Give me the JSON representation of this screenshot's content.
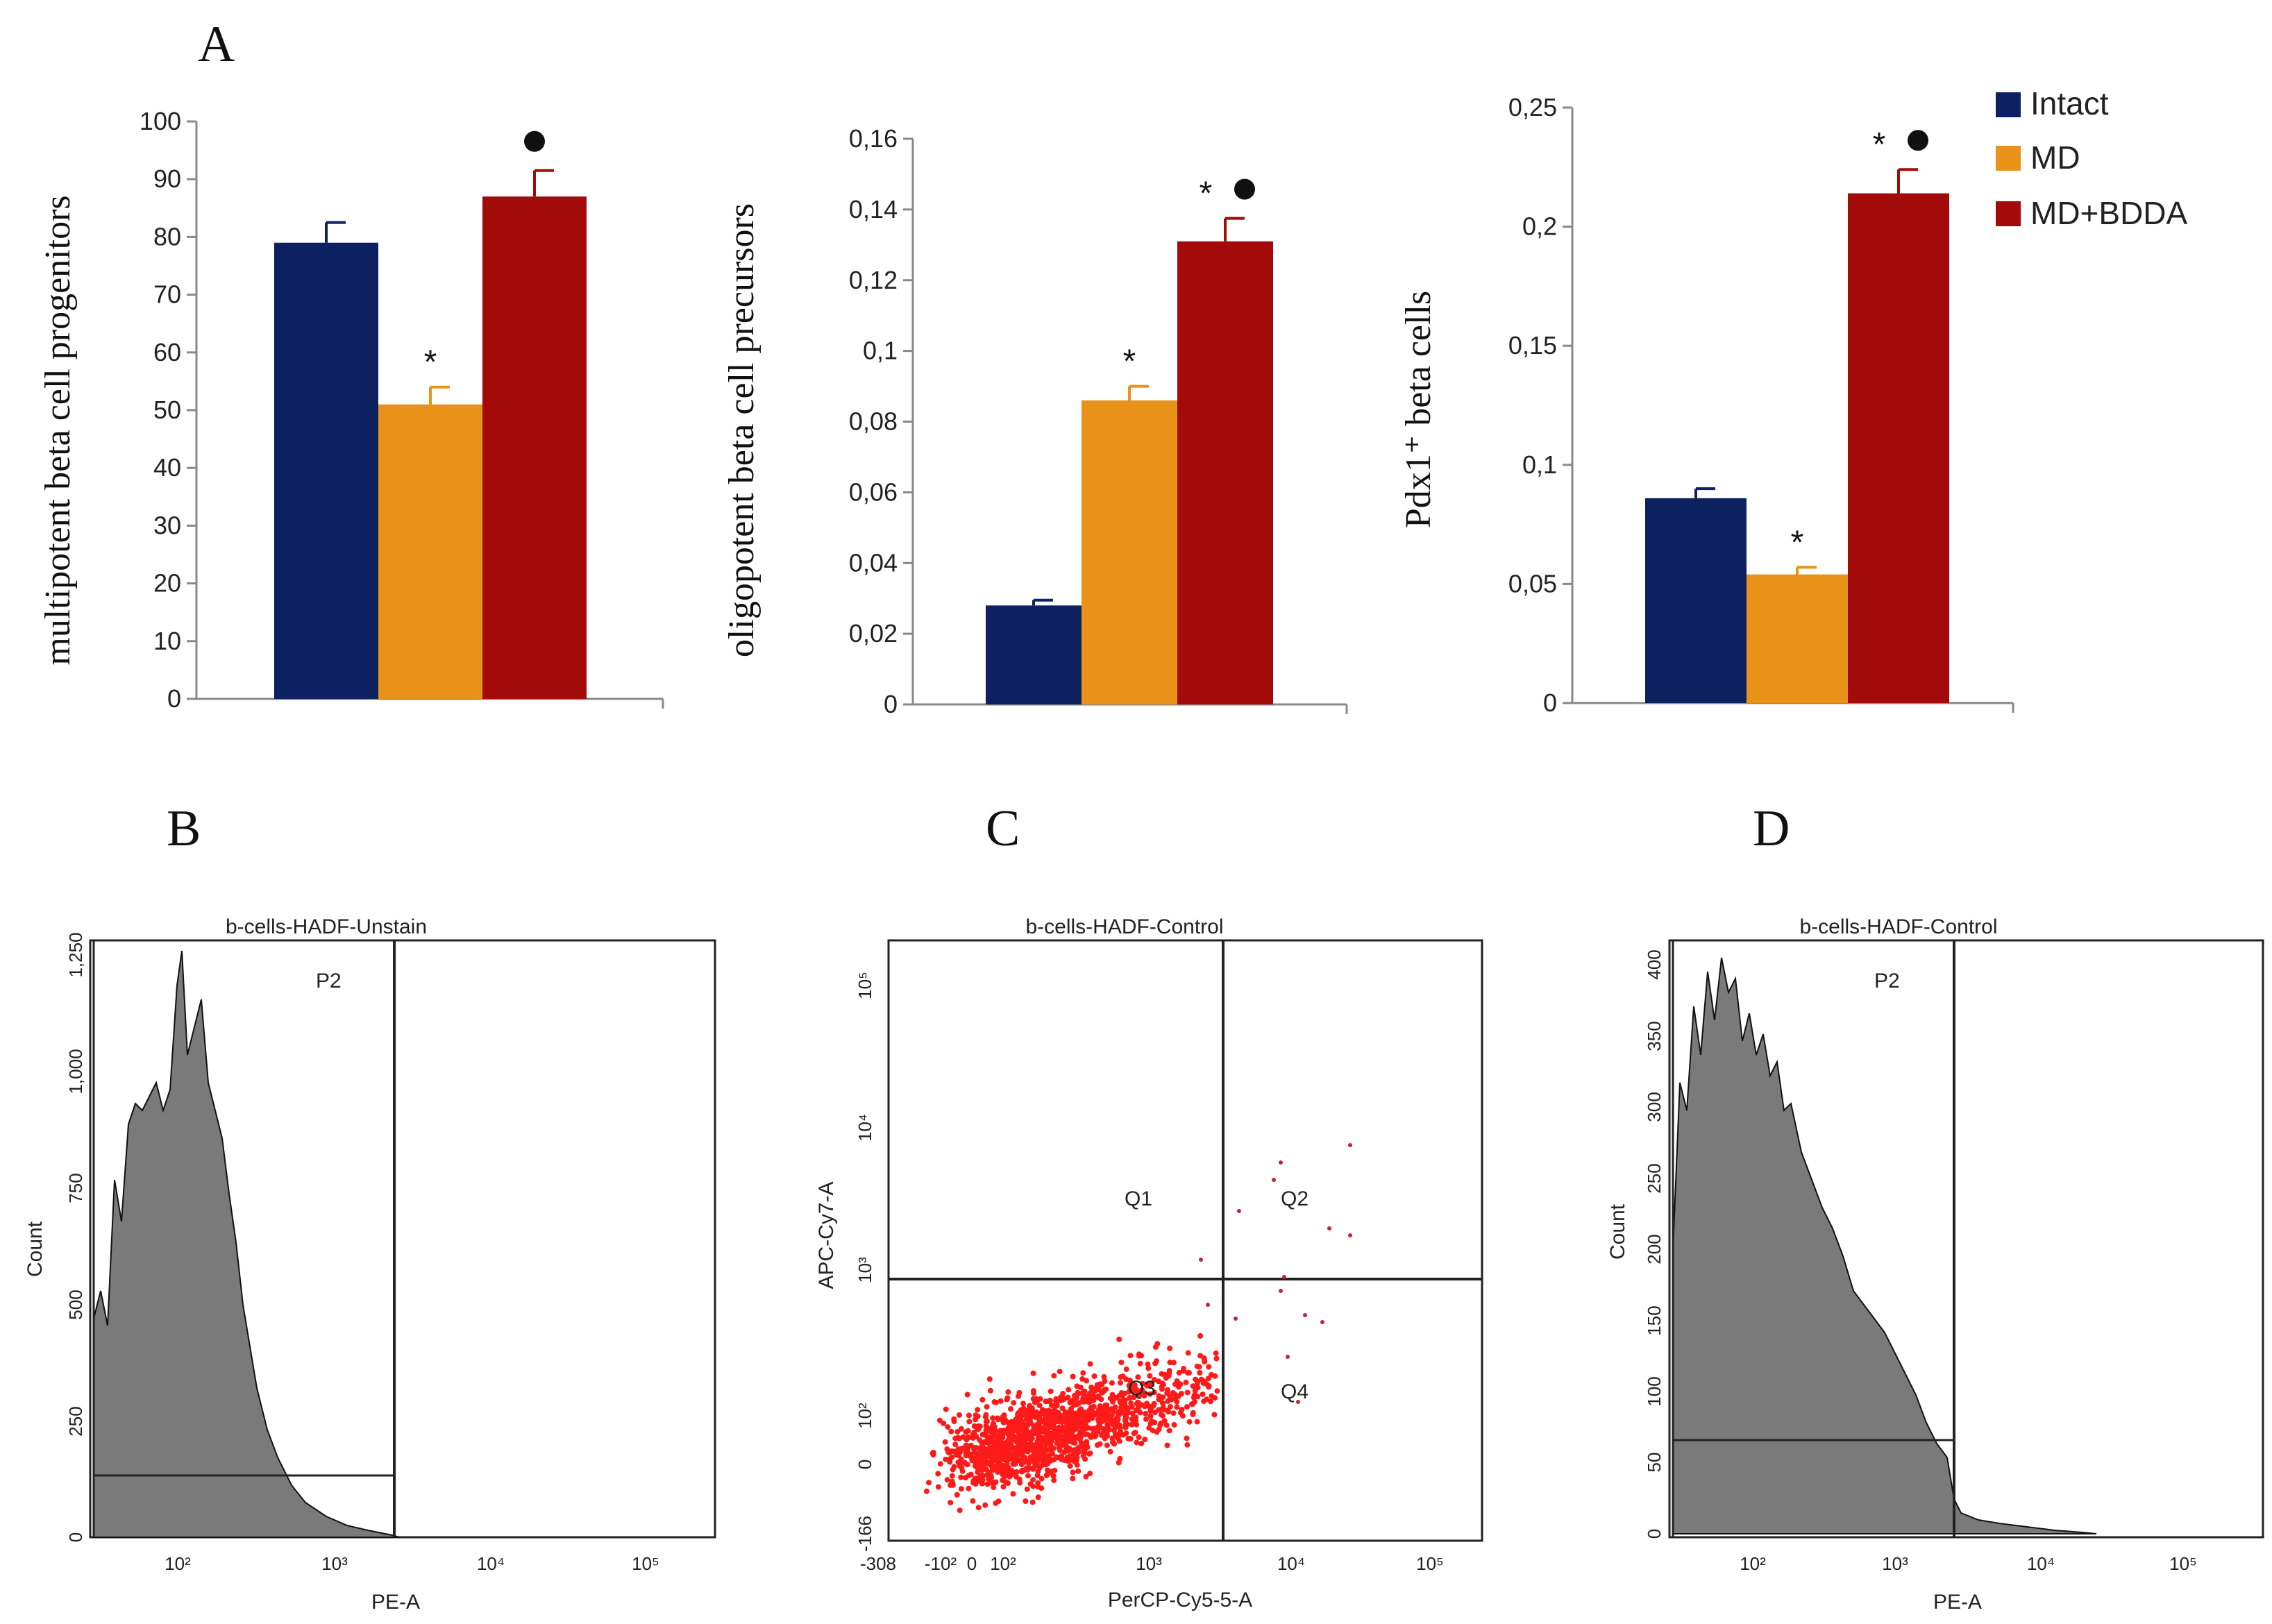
{
  "panels": {
    "A": "A",
    "B": "B",
    "C": "C",
    "D": "D"
  },
  "legend": {
    "items": [
      {
        "label": "Intact",
        "color": "#0d2160"
      },
      {
        "label": "MD",
        "color": "#e8921a"
      },
      {
        "label": "MD+BDDA",
        "color": "#a30b0b"
      }
    ]
  },
  "chart_data": [
    {
      "type": "bar",
      "id": "A1",
      "ylabel": "multipotent beta cell progenitors",
      "ylim": [
        0,
        100
      ],
      "yticks": [
        "0",
        "10",
        "20",
        "30",
        "40",
        "50",
        "60",
        "70",
        "80",
        "90",
        "100"
      ],
      "tickvals": [
        0,
        10,
        20,
        30,
        40,
        50,
        60,
        70,
        80,
        90,
        100
      ],
      "categories": [
        "Intact",
        "MD",
        "MD+BDDA"
      ],
      "values": [
        79,
        51,
        87
      ],
      "errors": [
        3.5,
        3,
        4.5
      ],
      "annotations": [
        "",
        "*",
        "●"
      ]
    },
    {
      "type": "bar",
      "id": "A2",
      "ylabel": "oligopotent beta cell precursors",
      "ylim": [
        0,
        0.16
      ],
      "yticks": [
        "0",
        "0,02",
        "0,04",
        "0,06",
        "0,08",
        "0,1",
        "0,12",
        "0,14",
        "0,16"
      ],
      "tickvals": [
        0,
        0.02,
        0.04,
        0.06,
        0.08,
        0.1,
        0.12,
        0.14,
        0.16
      ],
      "categories": [
        "Intact",
        "MD",
        "MD+BDDA"
      ],
      "values": [
        0.028,
        0.086,
        0.131
      ],
      "errors": [
        0.0015,
        0.004,
        0.0065
      ],
      "annotations": [
        "",
        "*",
        "* ●"
      ]
    },
    {
      "type": "bar",
      "id": "A3",
      "ylabel": "Pdx1⁺ beta cells",
      "ylim": [
        0,
        0.25
      ],
      "yticks": [
        "0",
        "0,05",
        "0,1",
        "0,15",
        "0,2",
        "0,25"
      ],
      "tickvals": [
        0,
        0.05,
        0.1,
        0.15,
        0.2,
        0.25
      ],
      "categories": [
        "Intact",
        "MD",
        "MD+BDDA"
      ],
      "values": [
        0.086,
        0.054,
        0.214
      ],
      "errors": [
        0.004,
        0.003,
        0.01
      ],
      "annotations": [
        "",
        "*",
        "* ●"
      ]
    }
  ],
  "flow": {
    "B": {
      "title": "b-cells-HADF-Unstain",
      "xlabel": "PE-A",
      "ylabel": "Count",
      "gate": "P2",
      "yticks": [
        "0",
        "250",
        "500",
        "750",
        "1,000",
        "1,250"
      ],
      "xticks": [
        "10²",
        "10³",
        "10⁴",
        "10⁵"
      ]
    },
    "C": {
      "title": "b-cells-HADF-Control",
      "xlabel": "PerCP-Cy5-5-A",
      "ylabel": "APC-Cy7-A",
      "quadrants": [
        "Q1",
        "Q2",
        "Q3",
        "Q4"
      ],
      "yticks": [
        "-166",
        "0",
        "10²",
        "10³",
        "10⁴",
        "10⁵"
      ],
      "xticks": [
        "-308",
        "-10²",
        "0",
        "10²",
        "10³",
        "10⁴",
        "10⁵"
      ]
    },
    "D": {
      "title": "b-cells-HADF-Control",
      "xlabel": "PE-A",
      "ylabel": "Count",
      "gate": "P2",
      "yticks": [
        "0",
        "50",
        "100",
        "150",
        "200",
        "250",
        "300",
        "350",
        "400"
      ],
      "xticks": [
        "10²",
        "10³",
        "10⁴",
        "10⁵"
      ]
    }
  }
}
